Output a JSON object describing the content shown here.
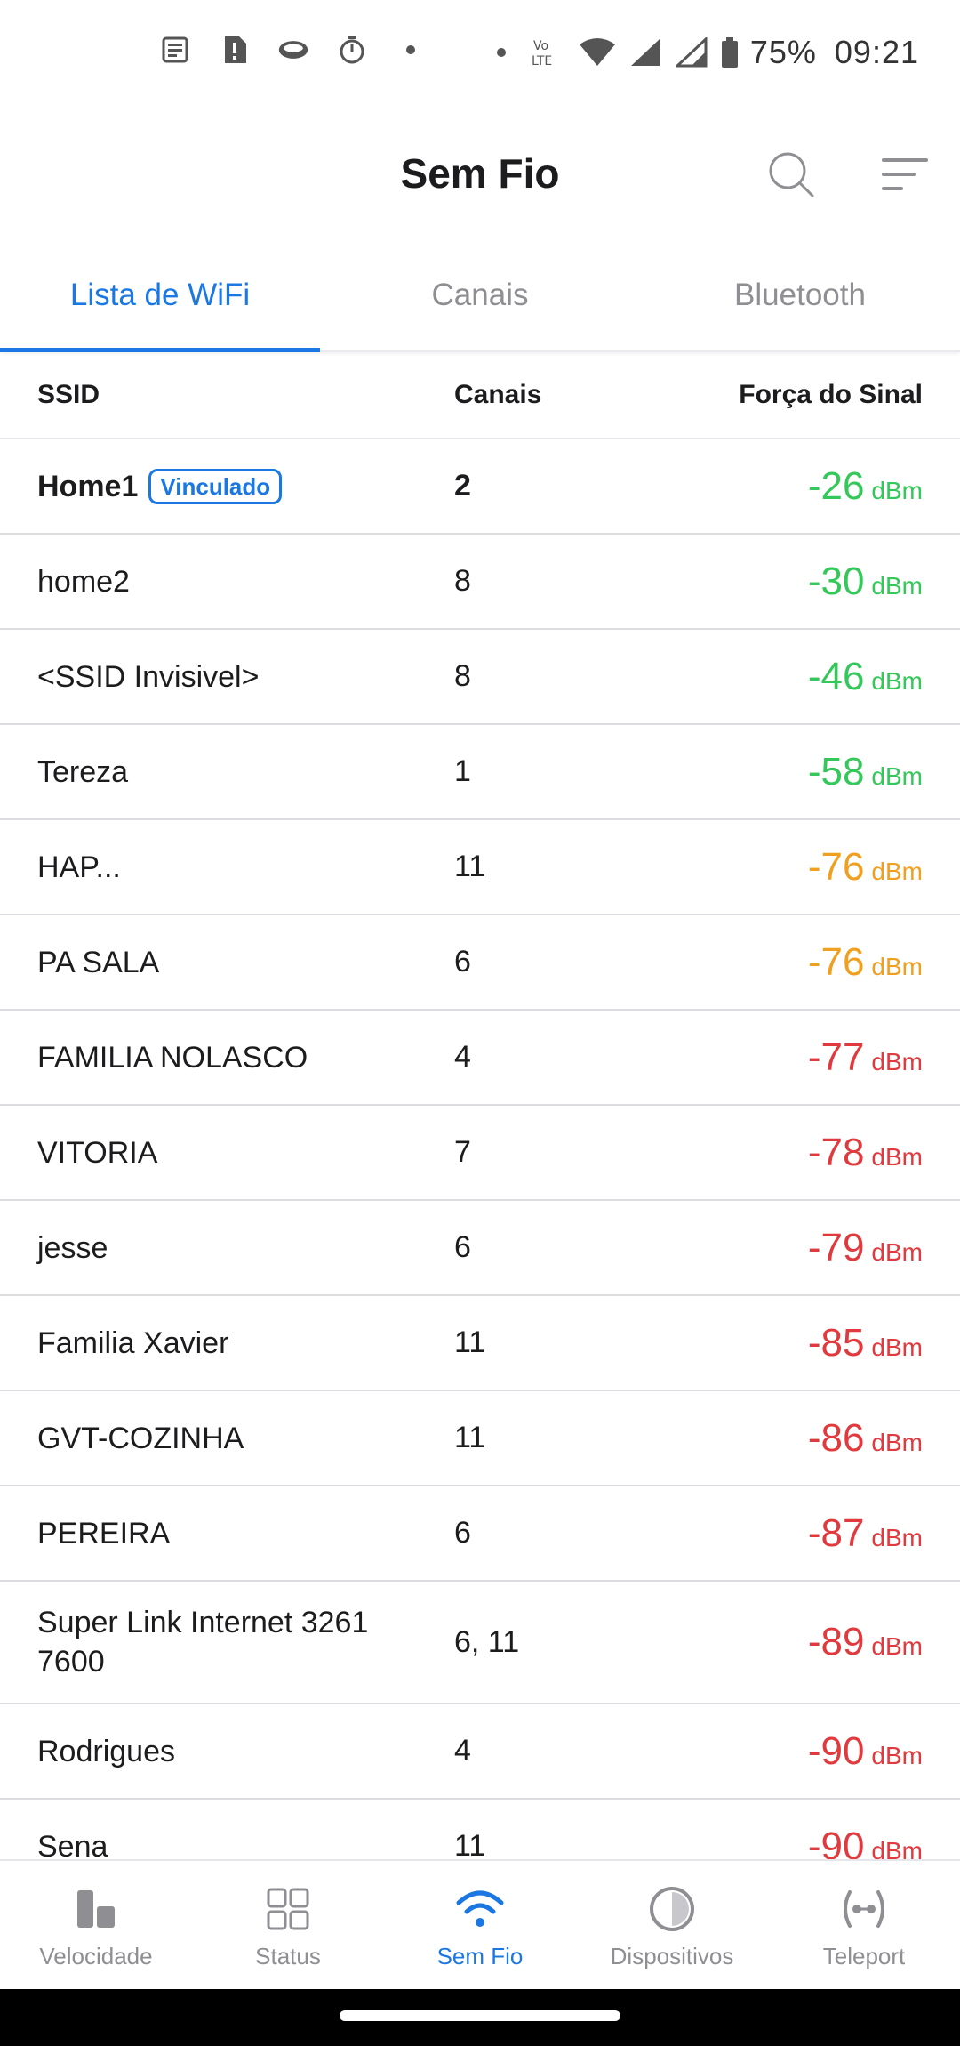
{
  "status_bar": {
    "battery": "75%",
    "time": "09:21",
    "network": "Vo LTE"
  },
  "appbar": {
    "title": "Sem Fio"
  },
  "tabs": [
    {
      "label": "Lista de WiFi",
      "active": true
    },
    {
      "label": "Canais",
      "active": false
    },
    {
      "label": "Bluetooth",
      "active": false
    }
  ],
  "table": {
    "headers": {
      "ssid": "SSID",
      "channels": "Canais",
      "signal": "Força do Sinal"
    },
    "unit": "dBm",
    "rows": [
      {
        "ssid": "Home1",
        "badge": "Vinculado",
        "channels": "2",
        "signal": "-26",
        "color": "#34c759"
      },
      {
        "ssid": "home2",
        "channels": "8",
        "signal": "-30",
        "color": "#34c759"
      },
      {
        "ssid": "<SSID Invisivel>",
        "channels": "8",
        "signal": "-46",
        "color": "#34c759"
      },
      {
        "ssid": "Tereza",
        "channels": "1",
        "signal": "-58",
        "color": "#34c759"
      },
      {
        "ssid": "HAP...",
        "channels": "11",
        "signal": "-76",
        "color": "#f0a020"
      },
      {
        "ssid": "PA SALA",
        "channels": "6",
        "signal": "-76",
        "color": "#f0a020"
      },
      {
        "ssid": "FAMILIA NOLASCO",
        "channels": "4",
        "signal": "-77",
        "color": "#e03a3e"
      },
      {
        "ssid": "VITORIA",
        "channels": "7",
        "signal": "-78",
        "color": "#e03a3e"
      },
      {
        "ssid": "jesse",
        "channels": "6",
        "signal": "-79",
        "color": "#e03a3e"
      },
      {
        "ssid": "Familia Xavier",
        "channels": "11",
        "signal": "-85",
        "color": "#e03a3e"
      },
      {
        "ssid": "GVT-COZINHA",
        "channels": "11",
        "signal": "-86",
        "color": "#e03a3e"
      },
      {
        "ssid": "PEREIRA",
        "channels": "6",
        "signal": "-87",
        "color": "#e03a3e"
      },
      {
        "ssid": "Super Link Internet 3261 7600",
        "channels": "6, 11",
        "signal": "-89",
        "color": "#e03a3e",
        "tall": true
      },
      {
        "ssid": "Rodrigues",
        "channels": "4",
        "signal": "-90",
        "color": "#e03a3e"
      },
      {
        "ssid": "Sena",
        "channels": "11",
        "signal": "-90",
        "color": "#e03a3e"
      }
    ]
  },
  "bottom_nav": [
    {
      "label": "Velocidade",
      "icon": "bar-chart-icon",
      "active": false
    },
    {
      "label": "Status",
      "icon": "grid-icon",
      "active": false
    },
    {
      "label": "Sem Fio",
      "icon": "wifi-icon",
      "active": true
    },
    {
      "label": "Dispositivos",
      "icon": "circle-icon",
      "active": false
    },
    {
      "label": "Teleport",
      "icon": "teleport-icon",
      "active": false
    }
  ]
}
